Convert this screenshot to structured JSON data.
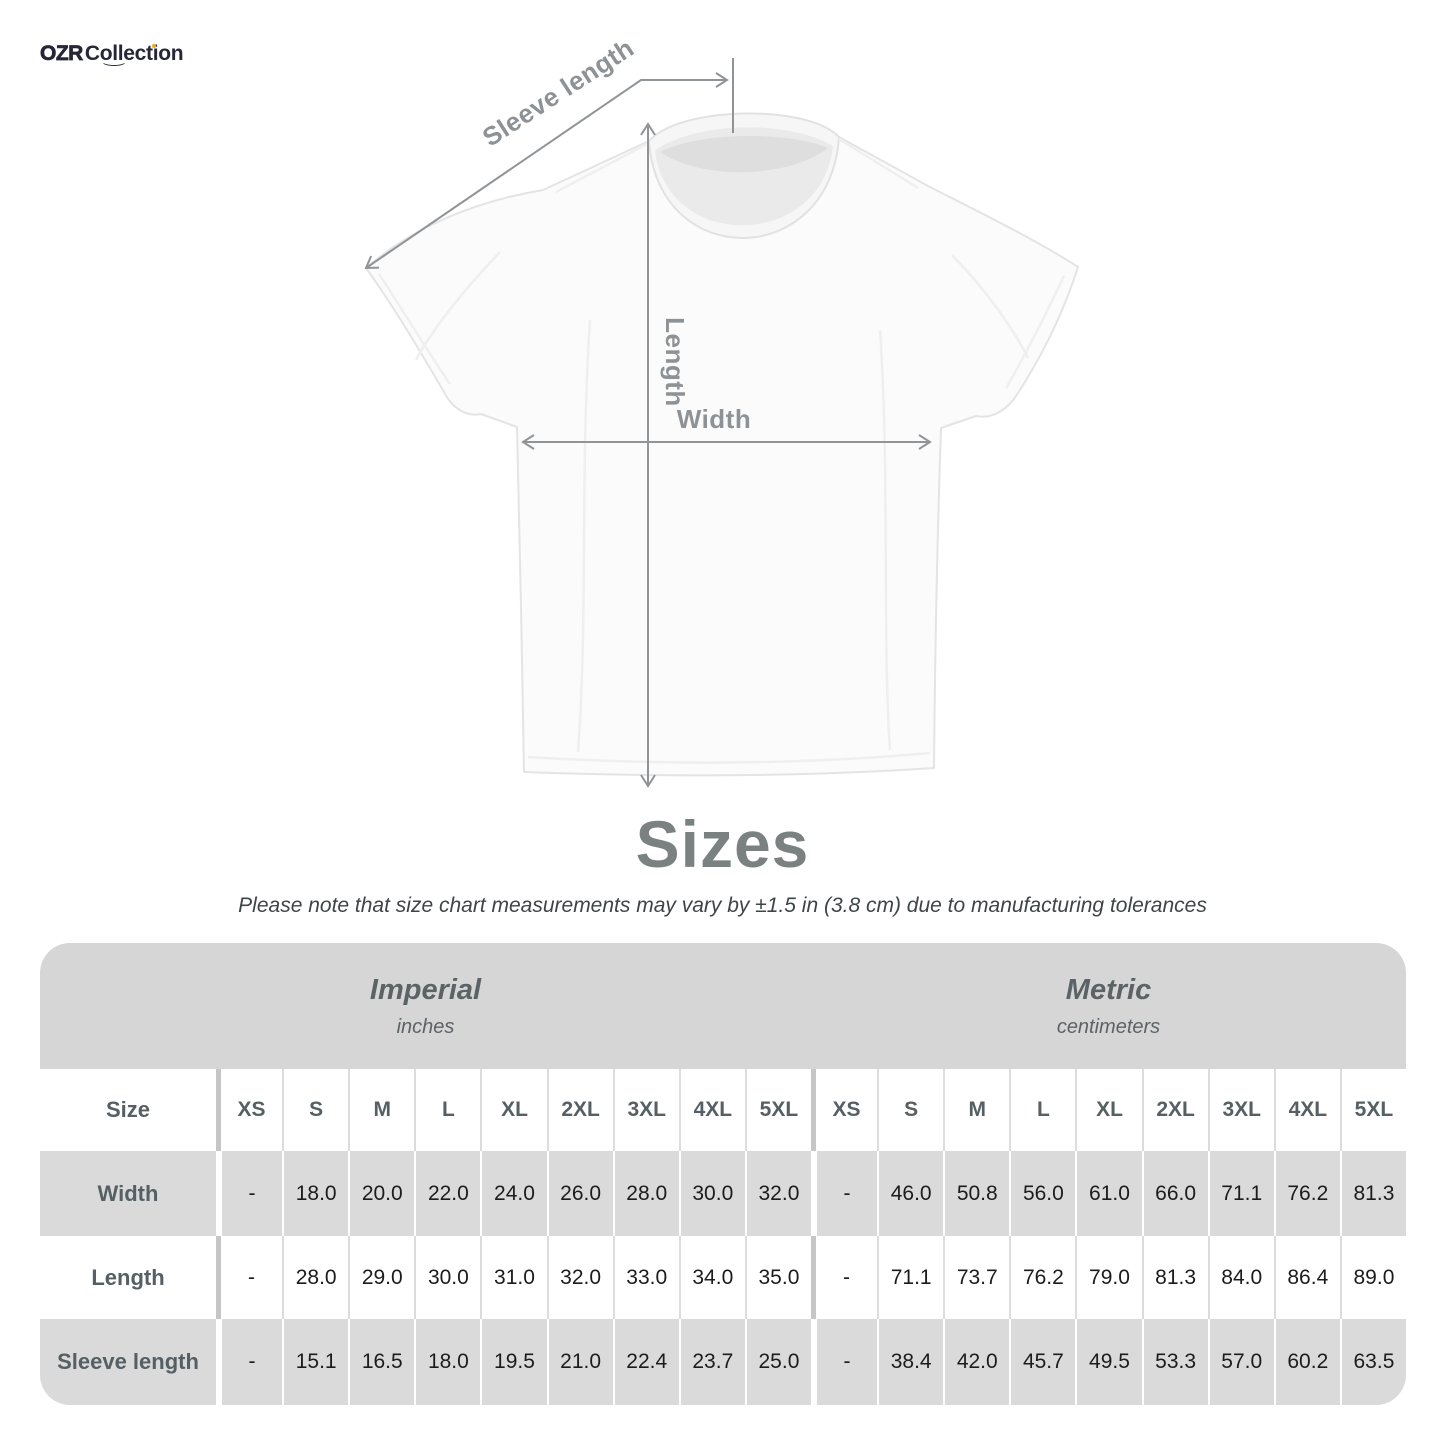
{
  "brand": {
    "name_primary": "OZR",
    "name_secondary": "Collection"
  },
  "diagram": {
    "sleeve_length_label": "Sleeve length",
    "length_label": "Length",
    "width_label": "Width"
  },
  "chart_data": {
    "type": "table",
    "title": "Sizes",
    "note": "Please note that size chart measurements may vary by ±1.5 in (3.8 cm) due to manufacturing tolerances",
    "corner_label": "Size",
    "unit_groups": [
      {
        "name": "Imperial",
        "unit": "inches"
      },
      {
        "name": "Metric",
        "unit": "centimeters"
      }
    ],
    "sizes": [
      "XS",
      "S",
      "M",
      "L",
      "XL",
      "2XL",
      "3XL",
      "4XL",
      "5XL"
    ],
    "rows": [
      {
        "label": "Width",
        "imperial": [
          "-",
          "18.0",
          "20.0",
          "22.0",
          "24.0",
          "26.0",
          "28.0",
          "30.0",
          "32.0"
        ],
        "metric": [
          "-",
          "46.0",
          "50.8",
          "56.0",
          "61.0",
          "66.0",
          "71.1",
          "76.2",
          "81.3"
        ]
      },
      {
        "label": "Length",
        "imperial": [
          "-",
          "28.0",
          "29.0",
          "30.0",
          "31.0",
          "32.0",
          "33.0",
          "34.0",
          "35.0"
        ],
        "metric": [
          "-",
          "71.1",
          "73.7",
          "76.2",
          "79.0",
          "81.3",
          "84.0",
          "86.4",
          "89.0"
        ]
      },
      {
        "label": "Sleeve length",
        "imperial": [
          "-",
          "15.1",
          "16.5",
          "18.0",
          "19.5",
          "21.0",
          "22.4",
          "23.7",
          "25.0"
        ],
        "metric": [
          "-",
          "38.4",
          "42.0",
          "45.7",
          "49.5",
          "53.3",
          "57.0",
          "60.2",
          "63.5"
        ]
      }
    ]
  },
  "colors": {
    "logo_navy": "#262637",
    "logo_dot_orange": "#f4a71d",
    "measure_arrow_gray": "#909497",
    "title_gray": "#7b8181",
    "table_band_gray": "#d6d6d6",
    "table_row_gray": "#dadada",
    "header_text_gray": "#566064",
    "value_text": "#1c1c1c"
  }
}
